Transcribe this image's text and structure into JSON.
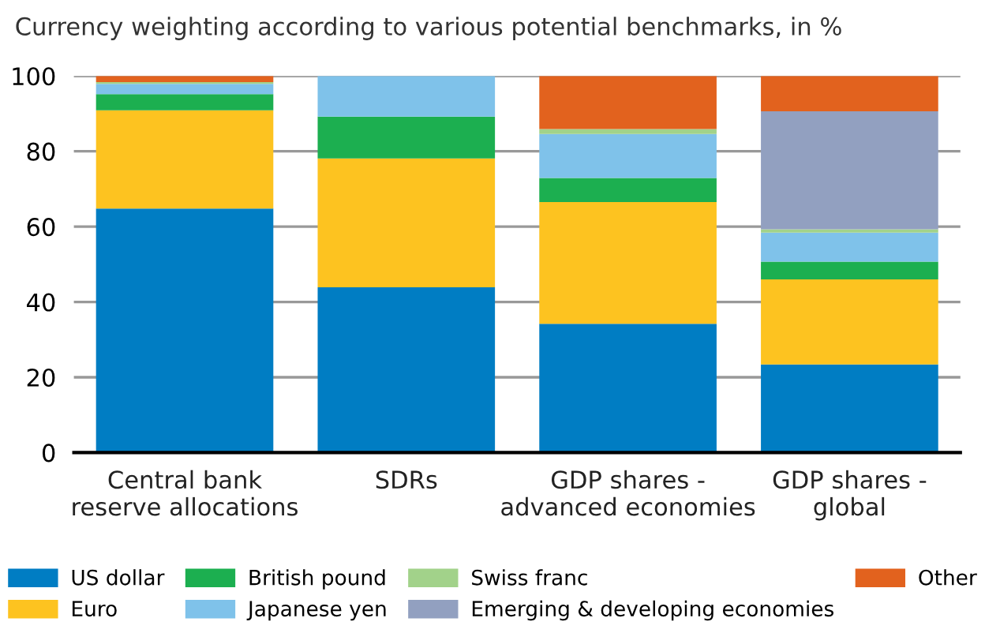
{
  "chart_data": {
    "type": "bar",
    "stacked": true,
    "title": "Currency weighting according to various potential benchmarks, in %",
    "categories": [
      "Central bank\nreserve allocations",
      "SDRs",
      "GDP shares -\nadvanced economies",
      "GDP shares -\nglobal"
    ],
    "series": [
      {
        "name": "US dollar",
        "color": "#007dc3",
        "values": [
          64.8,
          43.9,
          34.2,
          23.4
        ]
      },
      {
        "name": "Euro",
        "color": "#fdc320",
        "values": [
          26.1,
          34.2,
          32.3,
          22.6
        ]
      },
      {
        "name": "British pound",
        "color": "#1caf50",
        "values": [
          4.3,
          11.1,
          6.4,
          4.7
        ]
      },
      {
        "name": "Japanese yen",
        "color": "#7fc2ea",
        "values": [
          2.7,
          10.8,
          11.7,
          7.7
        ]
      },
      {
        "name": "Swiss franc",
        "color": "#a2d28a",
        "values": [
          0.5,
          null,
          1.3,
          0.9
        ]
      },
      {
        "name": "Emerging & developing economies",
        "color": "#92a0c0",
        "values": [
          null,
          null,
          null,
          31.3
        ]
      },
      {
        "name": "Other",
        "color": "#e2621e",
        "values": [
          1.6,
          null,
          14.1,
          9.4
        ]
      }
    ],
    "ylim": [
      0,
      100
    ],
    "yticks": [
      0,
      20,
      40,
      60,
      80,
      100
    ],
    "grid": "y",
    "legend": "bottom"
  }
}
